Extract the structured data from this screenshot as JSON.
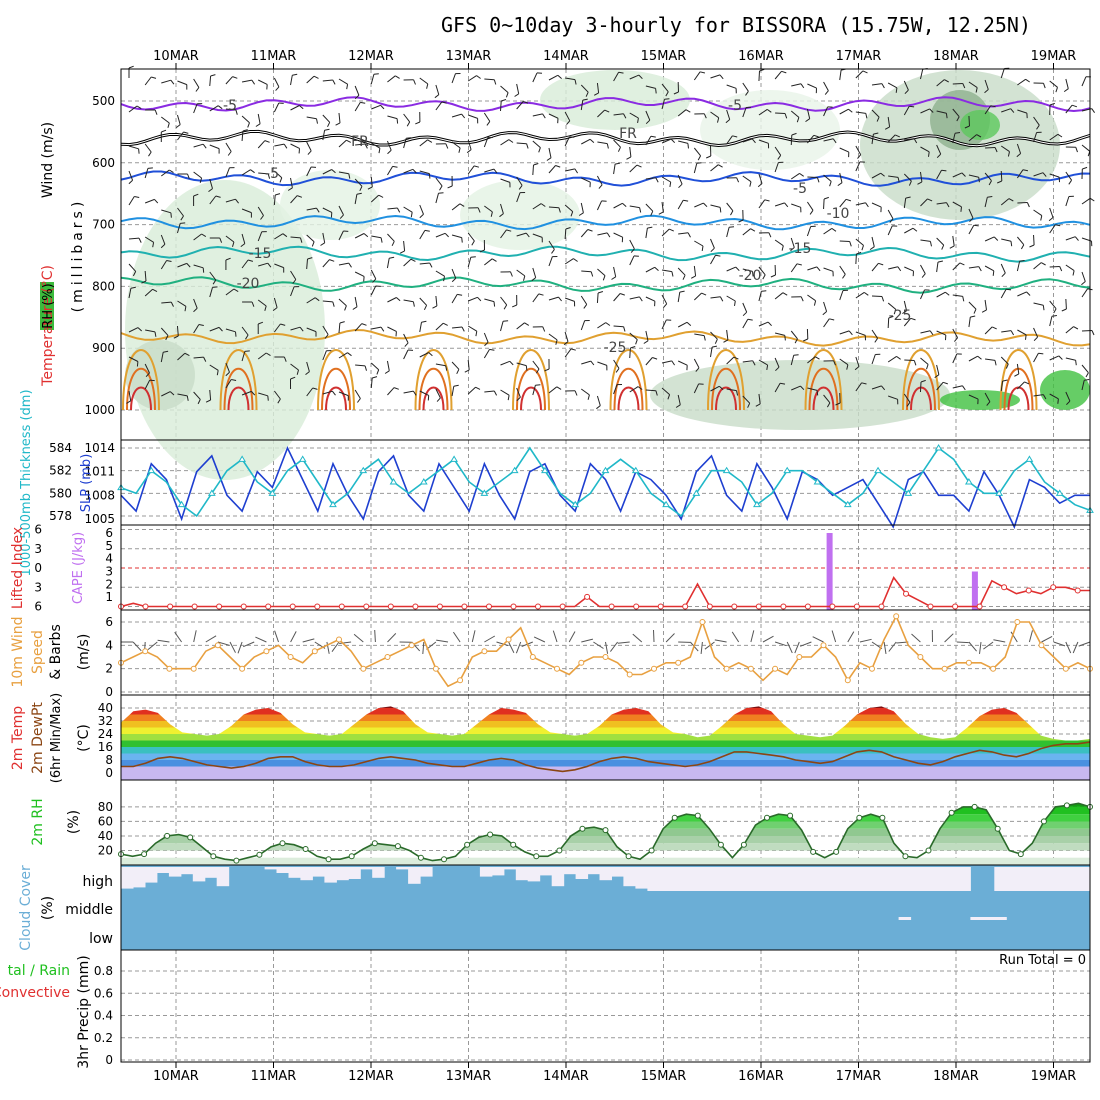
{
  "title": "GFS 0~10day 3-hourly for BISSORA (15.75W, 12.25N)",
  "dates": [
    "10MAR",
    "11MAR",
    "12MAR",
    "13MAR",
    "14MAR",
    "15MAR",
    "16MAR",
    "17MAR",
    "18MAR",
    "19MAR"
  ],
  "colors": {
    "temp_label": "#e03030",
    "wind_label": "#000000",
    "rh_label": "#20c020",
    "slp": "#1e3fd0",
    "thickness": "#20b8c8",
    "lifted": "#e03030",
    "cape": "#c070f0",
    "wind10": "#e8a040",
    "cloud": "#6baed6",
    "precip_rain": "#20c020",
    "precip_conv": "#e03030"
  },
  "panel_labels": {
    "upper": {
      "wind": "Wind (m/s)",
      "temperature": "Temperature (°C)",
      "rh": "RH (%)",
      "pressure": "(millibars)"
    },
    "slp": {
      "thickness": "1000-500mb Thickness (dm)",
      "slp": "SLP (mb)"
    },
    "cape": {
      "lifted": "Lifted Index",
      "cape": "CAPE (J/kg)"
    },
    "wind": {
      "label1": "10m Wind",
      "label2": "Speed",
      "label3": "& Barbs",
      "unit": "(m/s)"
    },
    "temp": {
      "label1": "2m Temp",
      "label2": "2m DewPt",
      "label3": "(6hr Min/Max)",
      "unit": "(°C)"
    },
    "rh": {
      "label": "2m RH",
      "unit": "(%)"
    },
    "cloud": {
      "label": "Cloud Cover",
      "unit": "(%)",
      "levels": [
        "high",
        "middle",
        "low"
      ]
    },
    "precip": {
      "label1": "tal / Rain",
      "label2": "Convective",
      "unit": "3hr Precip (mm)",
      "run_total": "Run Total = 0"
    }
  },
  "chart_data": [
    {
      "type": "line",
      "name": "upper-air cross-section",
      "yticks": [
        500,
        600,
        700,
        800,
        900,
        1000
      ],
      "contour_labels": [
        "-5",
        "-5",
        "FR",
        "FR",
        "-5",
        "-5",
        "-10",
        "-15",
        "-15",
        "-20",
        "-20",
        "-25",
        "-25"
      ],
      "contours": [
        {
          "label": "-5",
          "level_mb": 505,
          "color": "#8a2be2"
        },
        {
          "label": "FR",
          "level_mb": 560,
          "color": "#000000"
        },
        {
          "label": "-5",
          "level_mb": 625,
          "color": "#2050d8"
        },
        {
          "label": "10",
          "level_mb": 695,
          "color": "#2090e0"
        },
        {
          "label": "15",
          "level_mb": 745,
          "color": "#20b0b0"
        },
        {
          "label": "20",
          "level_mb": 795,
          "color": "#20b080"
        },
        {
          "label": "25",
          "level_mb": 880,
          "color": "#e0a030"
        }
      ]
    },
    {
      "type": "line",
      "name": "SLP and thickness",
      "y_left_ticks": [
        578,
        580,
        582,
        584
      ],
      "y_right_ticks": [
        1005,
        1008,
        1011,
        1014
      ],
      "slp": [
        1008,
        1006,
        1012,
        1010,
        1005,
        1011,
        1013,
        1008,
        1006,
        1011,
        1009,
        1014,
        1010,
        1006,
        1012,
        1008,
        1005,
        1011,
        1013,
        1008,
        1006,
        1012,
        1009,
        1006,
        1012,
        1008,
        1005,
        1011,
        1012,
        1008,
        1006,
        1012,
        1010,
        1006,
        1011,
        1010,
        1008,
        1005,
        1011,
        1013,
        1008,
        1006,
        1012,
        1009,
        1005,
        1011,
        1010,
        1008,
        1009,
        1010,
        1007,
        1004,
        1010,
        1011,
        1008,
        1008,
        1006,
        1011,
        1008,
        1004,
        1010,
        1009,
        1007,
        1008,
        1008
      ],
      "thickness": [
        580.5,
        580,
        582,
        581,
        579,
        578,
        580,
        582,
        583,
        581,
        580,
        582,
        583,
        581,
        579,
        580,
        582,
        583,
        581,
        580,
        581,
        582,
        583,
        581,
        580,
        581,
        582,
        584,
        582,
        580,
        579,
        580,
        582,
        583,
        582,
        580,
        579,
        578,
        580,
        582,
        582,
        581,
        579,
        580,
        582,
        582,
        581,
        580,
        579,
        580,
        582,
        581,
        580,
        582,
        584,
        583,
        581,
        580,
        580,
        582,
        583,
        581,
        580,
        579,
        578.5
      ]
    },
    {
      "type": "bar",
      "name": "CAPE and lifted index",
      "y_left_ticks": [
        -6,
        -3,
        0,
        3,
        6
      ],
      "y_right_ticks": [
        1,
        2,
        3,
        4,
        5,
        6
      ],
      "lifted_index": [
        6,
        5.5,
        6,
        6,
        6,
        6,
        6,
        6,
        6,
        6,
        6,
        6,
        6,
        6,
        6,
        6,
        6,
        6,
        6,
        6,
        6,
        6,
        6,
        6,
        6,
        6,
        6,
        6,
        6,
        6,
        6,
        6,
        6,
        6,
        6,
        6,
        6,
        6,
        4.5,
        6,
        6,
        6,
        6,
        6,
        6,
        6,
        6,
        2.5,
        6,
        6,
        6,
        6,
        6,
        6,
        6,
        6,
        6,
        6,
        6,
        6,
        6,
        6,
        6,
        1.5,
        4,
        5,
        6,
        6,
        6,
        6,
        6,
        2,
        3,
        4,
        3.5,
        4,
        3,
        3,
        3.5,
        3.5
      ],
      "cape": [
        {
          "x": 58.5,
          "value": 6
        },
        {
          "x": 70.5,
          "value": 3
        }
      ]
    },
    {
      "type": "line",
      "name": "10m wind speed",
      "yticks": [
        0,
        2,
        4,
        6
      ],
      "values": [
        2.5,
        3,
        3.5,
        3,
        2,
        2,
        2,
        3.5,
        4,
        3,
        2,
        3,
        3.5,
        4,
        3,
        2.5,
        3.5,
        4,
        4.5,
        3.5,
        2,
        2.5,
        3,
        3.5,
        4,
        4.5,
        2,
        0.5,
        1,
        3,
        3.5,
        3.5,
        4.5,
        5.5,
        3,
        2.5,
        2,
        1.5,
        2.5,
        3,
        3,
        2.5,
        1.5,
        1.5,
        2,
        2.5,
        2.5,
        3,
        6,
        3,
        2,
        2.5,
        2,
        1,
        2,
        1.5,
        3,
        3,
        4,
        3,
        1,
        2.5,
        2,
        4.5,
        6.5,
        4,
        3,
        2,
        2,
        2.5,
        2.5,
        2.5,
        2,
        3,
        6,
        6,
        4,
        3,
        2,
        2.5,
        2
      ]
    },
    {
      "type": "area",
      "name": "2m temperature and dewpoint",
      "yticks": [
        0,
        8,
        16,
        24,
        32,
        40
      ],
      "temperature": [
        31,
        38,
        39,
        37,
        30,
        25,
        24,
        23,
        24,
        29,
        36,
        39,
        40,
        37,
        30,
        25,
        24,
        23,
        24,
        30,
        36,
        40,
        41,
        38,
        30,
        25,
        24,
        23,
        24,
        30,
        36,
        40,
        39,
        37,
        30,
        25,
        24,
        23,
        24,
        29,
        36,
        39,
        40,
        38,
        30,
        25,
        24,
        22,
        23,
        29,
        36,
        40,
        41,
        38,
        30,
        24,
        23,
        22,
        23,
        29,
        36,
        40,
        41,
        38,
        30,
        24,
        22,
        21,
        22,
        28,
        35,
        39,
        40,
        37,
        30,
        23,
        21,
        20,
        20,
        21
      ],
      "dewpoint": [
        4,
        4,
        6,
        9,
        10,
        9,
        7,
        5,
        4,
        3,
        4,
        6,
        9,
        10,
        10,
        7,
        5,
        4,
        4,
        5,
        7,
        9,
        10,
        9,
        8,
        6,
        5,
        4,
        4,
        6,
        8,
        9,
        8,
        5,
        3,
        2,
        1,
        2,
        4,
        7,
        9,
        10,
        9,
        7,
        6,
        5,
        4,
        5,
        7,
        10,
        13,
        13,
        12,
        11,
        10,
        8,
        7,
        6,
        7,
        10,
        13,
        14,
        13,
        10,
        8,
        6,
        5,
        7,
        10,
        12,
        14,
        13,
        11,
        10,
        12,
        15,
        17,
        18,
        18,
        19
      ]
    },
    {
      "type": "area",
      "name": "2m relative humidity",
      "yticks": [
        20,
        40,
        60,
        80
      ],
      "values": [
        15,
        12,
        15,
        30,
        40,
        42,
        38,
        25,
        12,
        8,
        6,
        10,
        14,
        25,
        30,
        28,
        22,
        12,
        8,
        8,
        12,
        22,
        30,
        28,
        26,
        20,
        10,
        6,
        8,
        12,
        28,
        38,
        42,
        40,
        28,
        18,
        12,
        12,
        20,
        40,
        50,
        52,
        48,
        25,
        12,
        8,
        20,
        50,
        65,
        70,
        68,
        50,
        28,
        10,
        28,
        55,
        65,
        70,
        68,
        48,
        18,
        10,
        18,
        50,
        65,
        70,
        65,
        30,
        12,
        10,
        20,
        50,
        72,
        80,
        80,
        76,
        50,
        20,
        15,
        30,
        60,
        80,
        82,
        85,
        80
      ]
    },
    {
      "type": "bar",
      "name": "cloud cover",
      "categories": [
        "high",
        "middle",
        "low"
      ],
      "high": [
        10,
        15,
        35,
        75,
        60,
        70,
        40,
        55,
        20,
        100,
        100,
        100,
        90,
        75,
        55,
        45,
        60,
        35,
        45,
        50,
        90,
        55,
        100,
        90,
        30,
        60,
        100,
        100,
        100,
        100,
        60,
        65,
        90,
        45,
        40,
        65,
        20,
        70,
        50,
        70,
        45,
        60,
        20,
        10,
        0,
        0,
        0,
        0,
        0,
        0,
        0,
        0,
        0,
        0,
        0,
        0,
        0,
        0,
        0,
        0,
        0,
        0,
        0,
        0,
        0,
        0,
        0,
        0,
        0,
        0,
        0,
        100,
        100,
        0,
        0,
        0,
        0,
        0,
        0,
        0,
        0
      ],
      "middle": [
        0,
        0,
        0,
        0,
        0,
        0,
        0,
        0,
        0,
        0,
        0,
        0,
        0,
        0,
        0,
        0,
        0,
        0,
        0,
        0,
        0,
        0,
        0,
        0,
        0,
        0,
        0,
        0,
        0,
        0,
        0,
        0,
        0,
        0,
        0,
        0,
        0,
        0,
        0,
        0,
        0,
        0,
        0,
        0,
        0,
        0,
        0,
        0,
        0,
        0,
        0,
        0,
        0,
        0,
        0,
        0,
        0,
        0,
        0,
        0,
        0,
        0,
        0,
        0,
        0,
        10,
        0,
        0,
        0,
        0,
        0,
        10,
        10,
        10,
        0,
        0,
        0,
        0,
        0,
        0,
        0
      ],
      "low": [
        0,
        0,
        0,
        0,
        0,
        0,
        0,
        0,
        0,
        0,
        0,
        0,
        0,
        0,
        0,
        0,
        0,
        0,
        0,
        0,
        0,
        0,
        0,
        0,
        0,
        0,
        0,
        0,
        0,
        0,
        0,
        0,
        0,
        0,
        0,
        0,
        0,
        0,
        0,
        0,
        0,
        0,
        0,
        0,
        0,
        0,
        0,
        0,
        0,
        0,
        0,
        0,
        0,
        0,
        0,
        0,
        0,
        0,
        0,
        0,
        0,
        0,
        0,
        0,
        0,
        0,
        0,
        0,
        0,
        0,
        0,
        0,
        0,
        0,
        0,
        0,
        0,
        0,
        0,
        0,
        0
      ]
    },
    {
      "type": "bar",
      "name": "3hr precipitation",
      "yticks": [
        0,
        0.2,
        0.4,
        0.6,
        0.8
      ],
      "values": []
    }
  ]
}
